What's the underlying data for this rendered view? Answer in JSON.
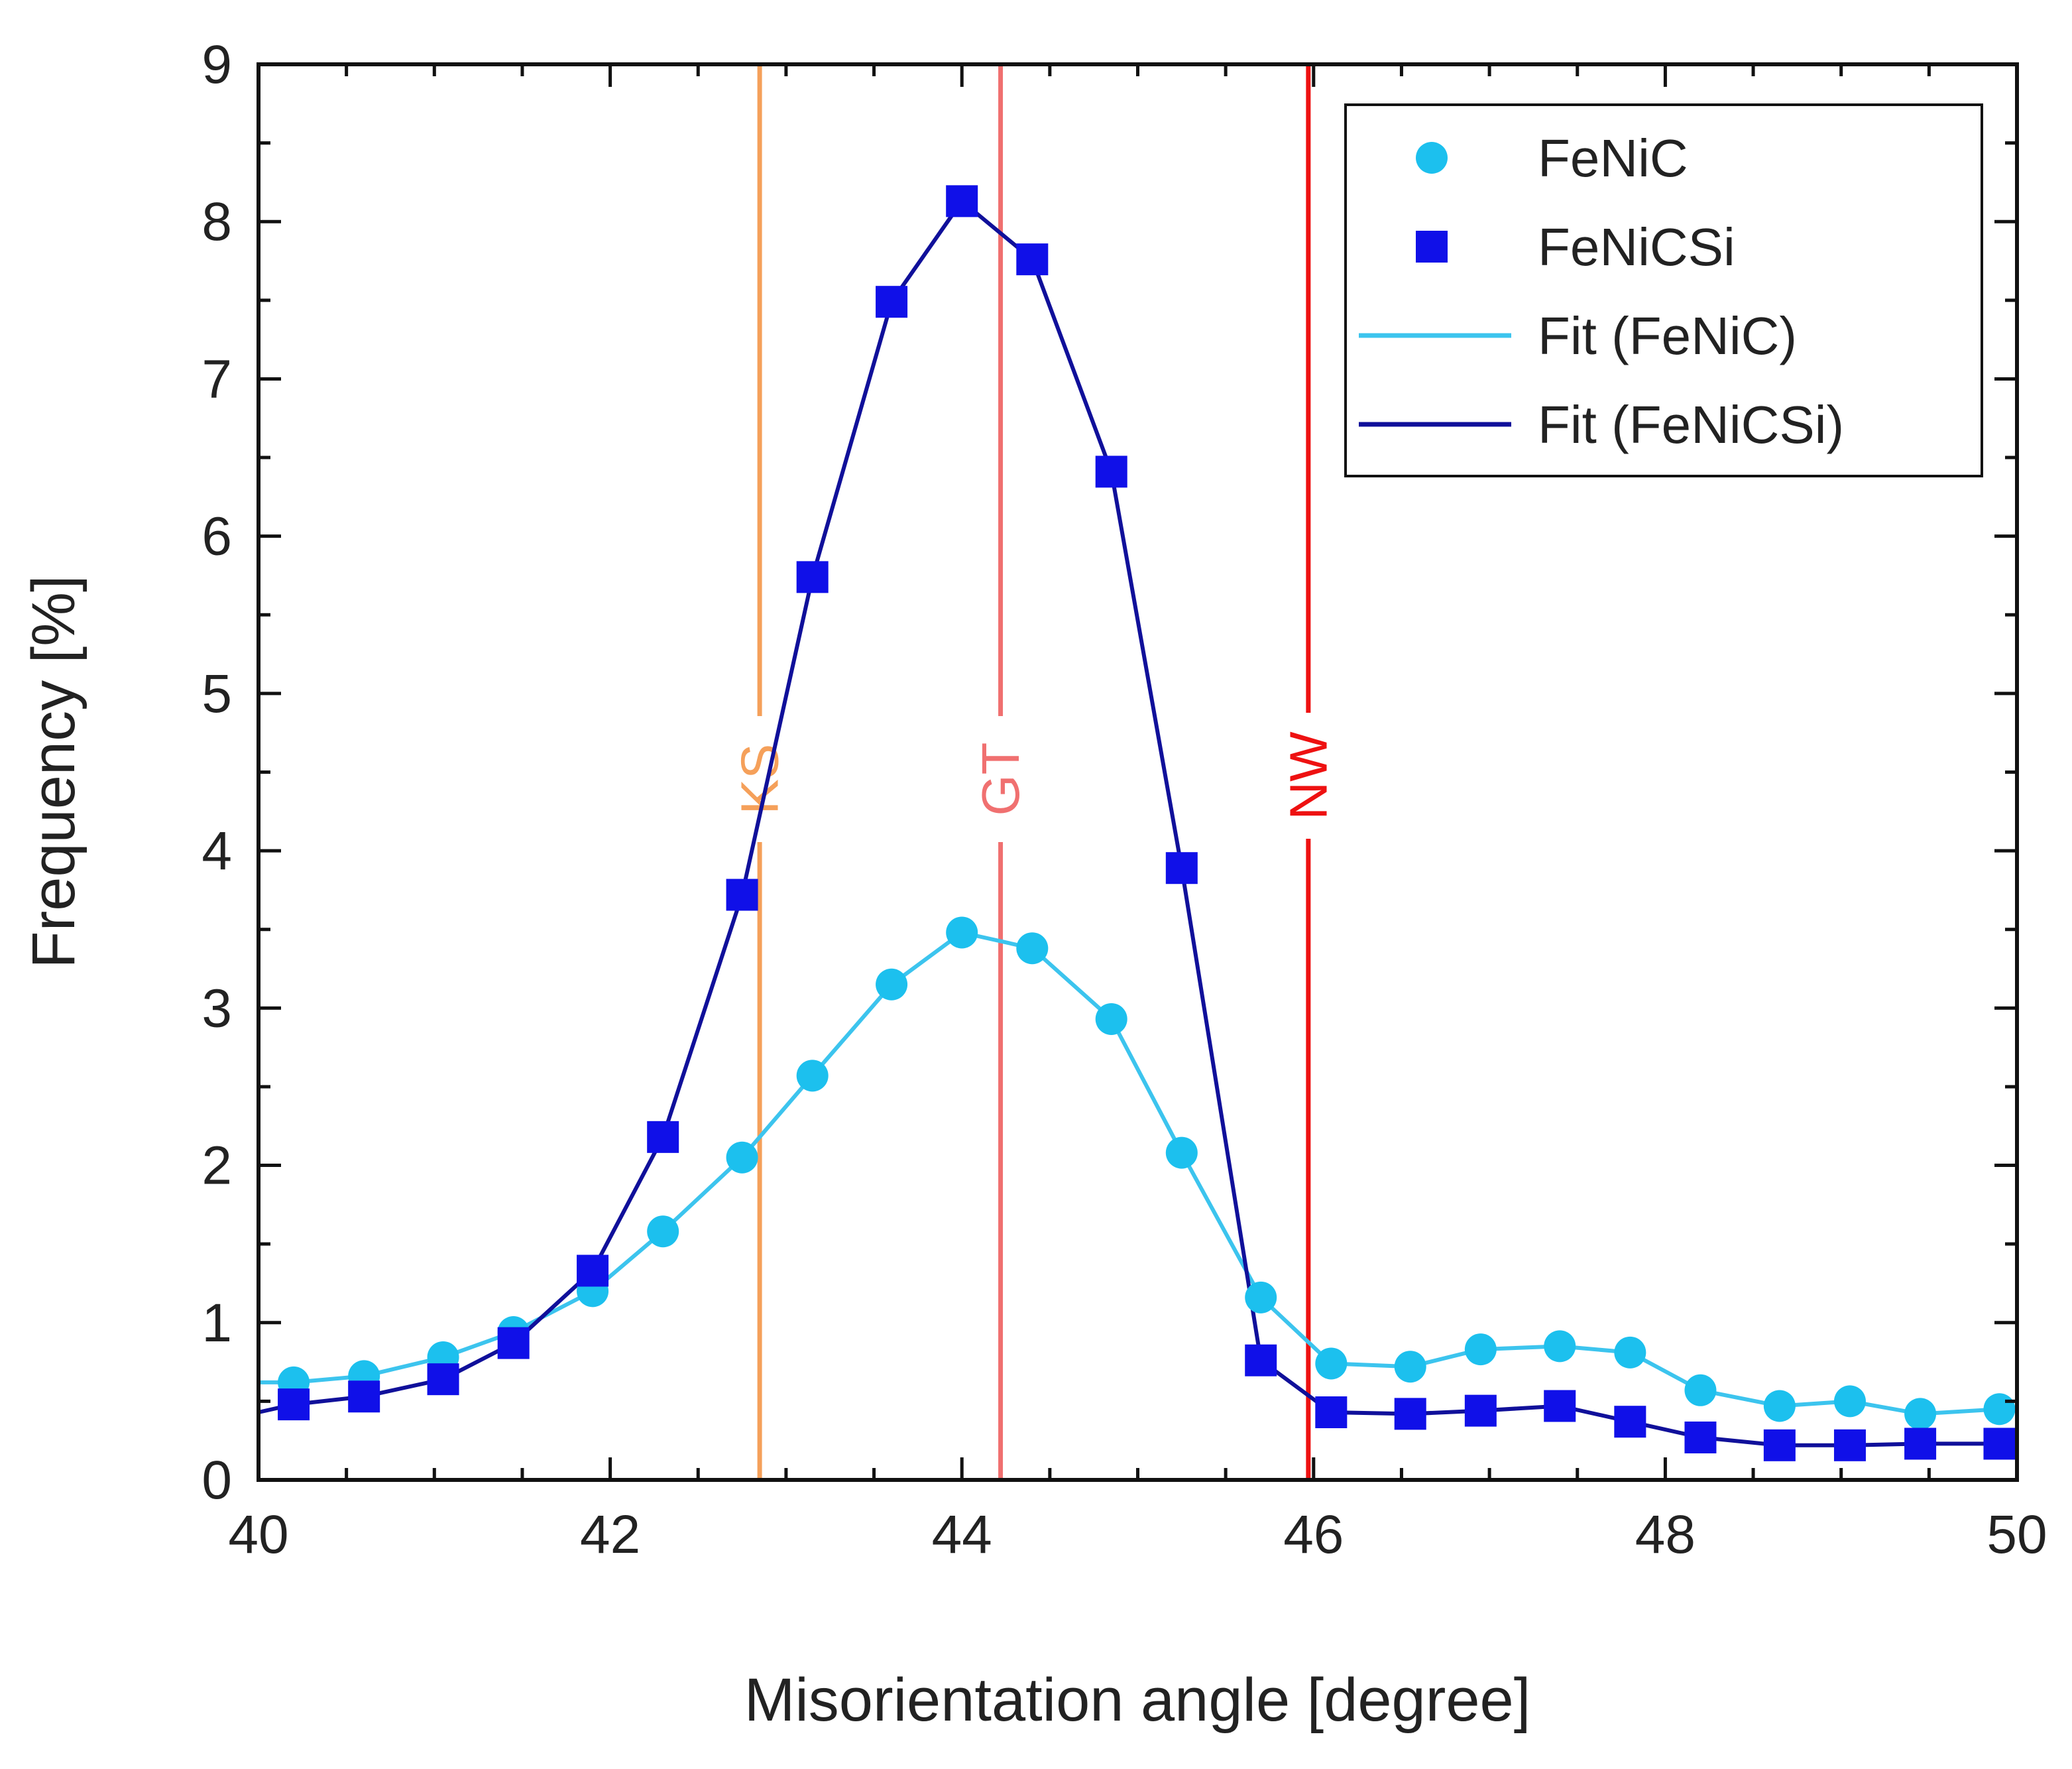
{
  "chart_data": {
    "type": "line",
    "xlabel": "Misorientation angle [degree]",
    "ylabel": "Frequency [%]",
    "xlim": [
      40,
      50
    ],
    "ylim": [
      0,
      9
    ],
    "xticks": [
      40,
      42,
      44,
      46,
      48,
      50
    ],
    "yticks": [
      0,
      1,
      2,
      3,
      4,
      5,
      6,
      7,
      8,
      9
    ],
    "grid": false,
    "legend_position": "top-right",
    "series": [
      {
        "name": "FeNiC",
        "marker": "circle",
        "color": "#1cc0ee",
        "x": [
          40.2,
          40.6,
          41.05,
          41.45,
          41.9,
          42.3,
          42.75,
          43.15,
          43.6,
          44.0,
          44.4,
          44.85,
          45.25,
          45.7,
          46.1,
          46.55,
          46.95,
          47.4,
          47.8,
          48.2,
          48.65,
          49.05,
          49.45,
          49.9
        ],
        "y": [
          0.62,
          0.66,
          0.78,
          0.94,
          1.2,
          1.58,
          2.05,
          2.57,
          3.15,
          3.48,
          3.38,
          2.93,
          2.08,
          1.16,
          0.74,
          0.72,
          0.83,
          0.85,
          0.81,
          0.57,
          0.47,
          0.5,
          0.42,
          0.45
        ]
      },
      {
        "name": "FeNiCSi",
        "marker": "square",
        "color": "#1010e8",
        "x": [
          40.2,
          40.6,
          41.05,
          41.45,
          41.9,
          42.3,
          42.75,
          43.15,
          43.6,
          44.0,
          44.4,
          44.85,
          45.25,
          45.7,
          46.1,
          46.55,
          46.95,
          47.4,
          47.8,
          48.2,
          48.65,
          49.05,
          49.45,
          49.9
        ],
        "y": [
          0.48,
          0.53,
          0.64,
          0.87,
          1.33,
          2.18,
          3.72,
          5.74,
          7.49,
          8.13,
          7.76,
          6.41,
          3.89,
          0.76,
          0.43,
          0.42,
          0.44,
          0.47,
          0.37,
          0.27,
          0.22,
          0.22,
          0.23,
          0.23
        ]
      },
      {
        "name": "Fit (FeNiC)",
        "marker": "line",
        "color": "#3cc4ee",
        "x": [
          40.0,
          40.2,
          40.6,
          41.05,
          41.45,
          41.9,
          42.3,
          42.75,
          43.15,
          43.6,
          44.0,
          44.4,
          44.85,
          45.25,
          45.7,
          46.1,
          46.55,
          46.95,
          47.4,
          47.8,
          48.2,
          48.65,
          49.05,
          49.45,
          49.9,
          50.0
        ],
        "y": [
          0.62,
          0.62,
          0.66,
          0.78,
          0.94,
          1.2,
          1.58,
          2.05,
          2.57,
          3.15,
          3.48,
          3.38,
          2.93,
          2.08,
          1.16,
          0.74,
          0.72,
          0.83,
          0.85,
          0.81,
          0.57,
          0.47,
          0.5,
          0.42,
          0.45,
          0.45
        ]
      },
      {
        "name": "Fit (FeNiCSi)",
        "marker": "line",
        "color": "#10109a",
        "x": [
          40.0,
          40.2,
          40.6,
          41.05,
          41.45,
          41.9,
          42.3,
          42.75,
          43.15,
          43.6,
          44.0,
          44.4,
          44.85,
          45.25,
          45.7,
          46.1,
          46.55,
          46.95,
          47.4,
          47.8,
          48.2,
          48.65,
          49.05,
          49.45,
          49.9,
          50.0
        ],
        "y": [
          0.43,
          0.48,
          0.53,
          0.64,
          0.87,
          1.33,
          2.18,
          3.72,
          5.74,
          7.49,
          8.13,
          7.76,
          6.41,
          3.89,
          0.76,
          0.43,
          0.42,
          0.44,
          0.47,
          0.37,
          0.27,
          0.22,
          0.22,
          0.23,
          0.23,
          0.23
        ]
      }
    ],
    "reference_lines": [
      {
        "label": "KS",
        "x": 42.85,
        "color": "#f5a05a"
      },
      {
        "label": "GT",
        "x": 44.22,
        "color": "#f07070"
      },
      {
        "label": "NW",
        "x": 45.97,
        "color": "#ee1111"
      }
    ]
  }
}
